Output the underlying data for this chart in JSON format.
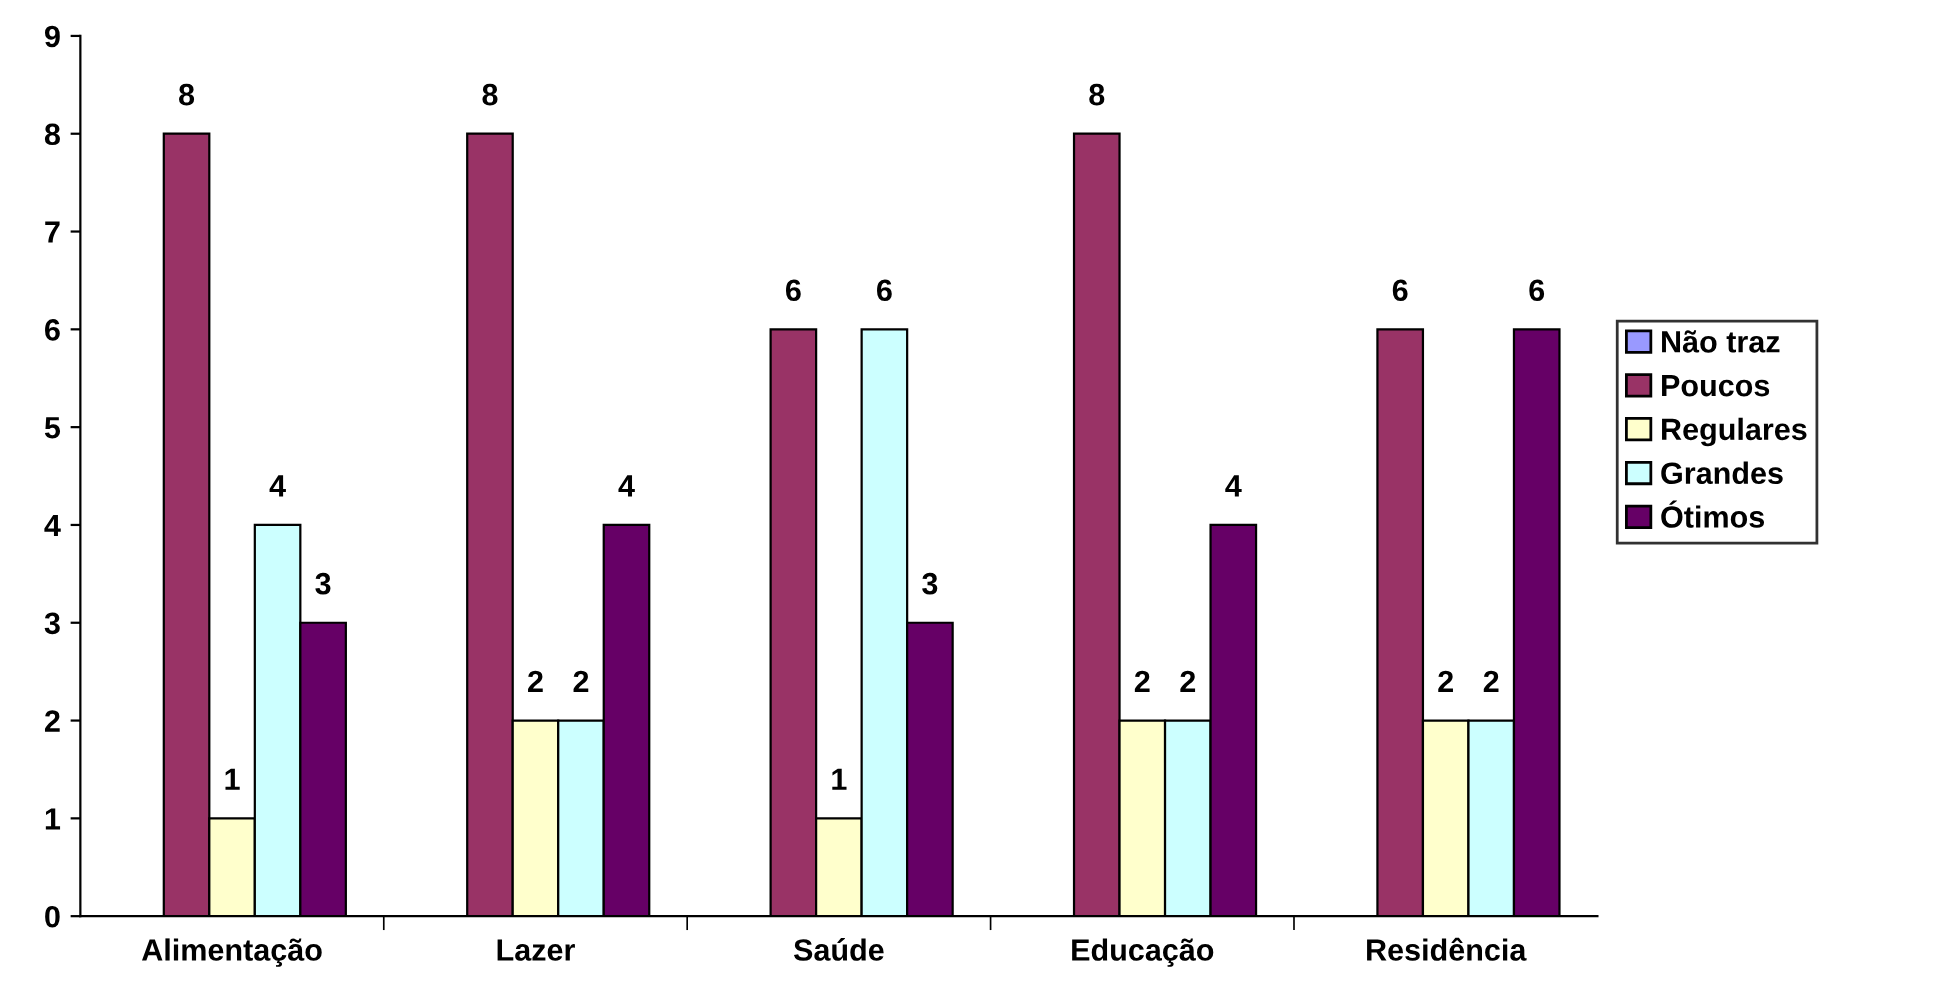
{
  "chart_data": {
    "type": "bar",
    "categories": [
      "Alimentação",
      "Lazer",
      "Saúde",
      "Educação",
      "Residência"
    ],
    "series": [
      {
        "name": "Não traz",
        "color": "#9999ff",
        "values": [
          0,
          0,
          0,
          0,
          0
        ],
        "value_labels": [
          null,
          null,
          null,
          null,
          null
        ]
      },
      {
        "name": "Poucos",
        "color": "#993366",
        "values": [
          8,
          8,
          6,
          8,
          6
        ],
        "value_labels": [
          "8",
          "8",
          "6",
          "8",
          "6"
        ]
      },
      {
        "name": "Regulares",
        "color": "#ffffcc",
        "values": [
          1,
          2,
          1,
          2,
          2
        ],
        "value_labels": [
          "1",
          "2",
          "1",
          "2",
          "2"
        ]
      },
      {
        "name": "Grandes",
        "color": "#ccffff",
        "values": [
          4,
          2,
          6,
          2,
          2
        ],
        "value_labels": [
          "4",
          "2",
          "6",
          "2",
          "2"
        ]
      },
      {
        "name": "Ótimos",
        "color": "#660066",
        "values": [
          3,
          4,
          3,
          4,
          6
        ],
        "value_labels": [
          "3",
          "4",
          "3",
          "4",
          "6"
        ]
      }
    ],
    "ylim": [
      0,
      9
    ],
    "yticks": [
      0,
      1,
      2,
      3,
      4,
      5,
      6,
      7,
      8,
      9
    ],
    "grid": false,
    "legend": "right"
  }
}
